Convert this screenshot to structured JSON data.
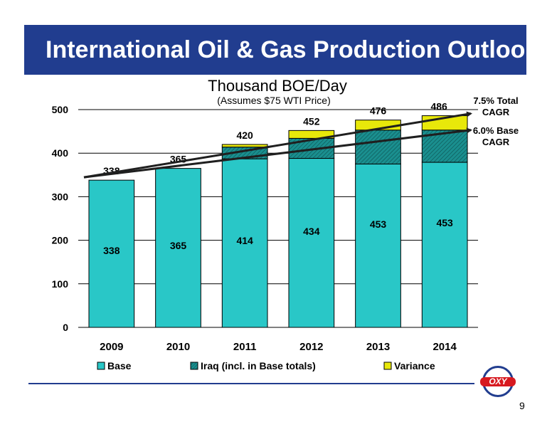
{
  "header": {
    "title": "International Oil & Gas Production Outlook"
  },
  "page_number": "9",
  "logo": {
    "text": "OXY"
  },
  "colors": {
    "header_bg": "#213d8f",
    "base": "#29c7c7",
    "iraq": "#1a8f8f",
    "variance": "#e8e80a",
    "trend": "#1f1f1f"
  },
  "chart_data": {
    "type": "bar",
    "title": "Thousand BOE/Day",
    "subtitle": "(Assumes $75 WTI Price)",
    "categories": [
      "2009",
      "2010",
      "2011",
      "2012",
      "2013",
      "2014"
    ],
    "series": [
      {
        "name": "Base",
        "values": [
          338,
          365,
          387,
          388,
          375,
          379
        ]
      },
      {
        "name": "Iraq (incl. in Base totals)",
        "values": [
          0,
          0,
          27,
          46,
          78,
          74
        ]
      },
      {
        "name": "Variance",
        "values": [
          0,
          0,
          6,
          18,
          23,
          33
        ]
      }
    ],
    "base_totals": [
      338,
      365,
      414,
      434,
      453,
      453
    ],
    "totals": [
      338,
      365,
      420,
      452,
      476,
      486
    ],
    "ylim": [
      0,
      500
    ],
    "yticks": [
      0,
      100,
      200,
      300,
      400,
      500
    ],
    "grid": true,
    "legend_position": "bottom",
    "trendlines": [
      {
        "label": "7.5% Total CAGR",
        "label_lines": [
          "7.5% Total",
          "CAGR"
        ],
        "from": [
          2009,
          338
        ],
        "to": [
          2014,
          486
        ]
      },
      {
        "label": "6.0% Base CAGR",
        "label_lines": [
          "6.0% Base",
          "CAGR"
        ],
        "from": [
          2009,
          338
        ],
        "to": [
          2014,
          453
        ]
      }
    ]
  }
}
